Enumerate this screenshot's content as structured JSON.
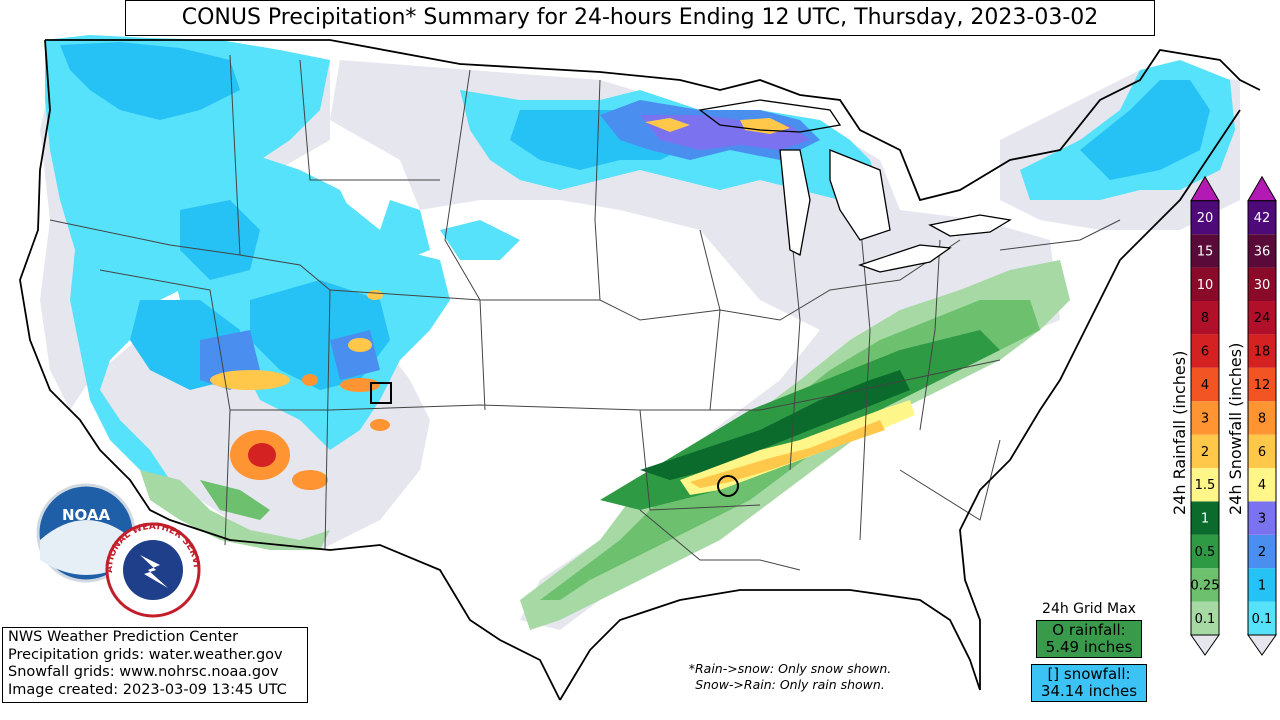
{
  "title": "CONUS Precipitation* Summary for 24-hours Ending 12 UTC, Thursday, 2023-03-02",
  "credits": [
    "NWS Weather Prediction Center",
    "Precipitation grids: water.weather.gov",
    "Snowfall grids: www.nohrsc.noaa.gov",
    "Image created: 2023-03-09 13:45 UTC"
  ],
  "footnote": [
    "*Rain->snow: Only snow shown.",
    "Snow->Rain: Only rain shown."
  ],
  "grid_max": {
    "title": "24h Grid Max",
    "rain_label": "O rainfall:",
    "rain_value": "5.49 inches",
    "snow_label": "[] snowfall:",
    "snow_value": "34.14 inches"
  },
  "logos": {
    "noaa": "NOAA",
    "nws": "NATIONAL WEATHER SERVICE"
  },
  "rain_scale": {
    "label": "24h Rainfall (inches)",
    "levels": [
      {
        "value": "0.1",
        "color": "#a6d9a3"
      },
      {
        "value": "0.25",
        "color": "#6cc06e"
      },
      {
        "value": "0.5",
        "color": "#2f9a44"
      },
      {
        "value": "1",
        "color": "#0a6b2c"
      },
      {
        "value": "1.5",
        "color": "#fff68a"
      },
      {
        "value": "2",
        "color": "#ffc84a"
      },
      {
        "value": "3",
        "color": "#ff9433"
      },
      {
        "value": "4",
        "color": "#f25424"
      },
      {
        "value": "6",
        "color": "#d42222"
      },
      {
        "value": "8",
        "color": "#b0102a"
      },
      {
        "value": "10",
        "color": "#8a0a2a"
      },
      {
        "value": "15",
        "color": "#5a0a38"
      },
      {
        "value": "20",
        "color": "#4e0a78"
      }
    ],
    "arrow_color": "#b31ab3"
  },
  "snow_scale": {
    "label": "24h Snowfall (inches)",
    "levels": [
      {
        "value": "0.1",
        "color": "#55e2fa"
      },
      {
        "value": "1",
        "color": "#26c1f5"
      },
      {
        "value": "2",
        "color": "#4a8ff0"
      },
      {
        "value": "3",
        "color": "#7a72ef"
      },
      {
        "value": "4",
        "color": "#fff68a"
      },
      {
        "value": "6",
        "color": "#ffc84a"
      },
      {
        "value": "8",
        "color": "#ff9433"
      },
      {
        "value": "12",
        "color": "#f25424"
      },
      {
        "value": "18",
        "color": "#d42222"
      },
      {
        "value": "24",
        "color": "#b0102a"
      },
      {
        "value": "30",
        "color": "#8a0a2a"
      },
      {
        "value": "36",
        "color": "#5a0a38"
      },
      {
        "value": "42",
        "color": "#4e0a78"
      }
    ],
    "arrow_color": "#b31ab3"
  },
  "colors": {
    "snow_light": "#55e2fa",
    "snow_mid": "#26c1f5",
    "snow_heavy": "#7a72ef",
    "rain_light": "#a6d9a3",
    "rain_mid": "#6cc06e",
    "rain_heavy": "#2f9a44",
    "rain_dark": "#0a6b2c",
    "trace": "#e6e6ee",
    "yellow": "#fff68a",
    "orange": "#ffc84a",
    "red": "#d42222"
  }
}
